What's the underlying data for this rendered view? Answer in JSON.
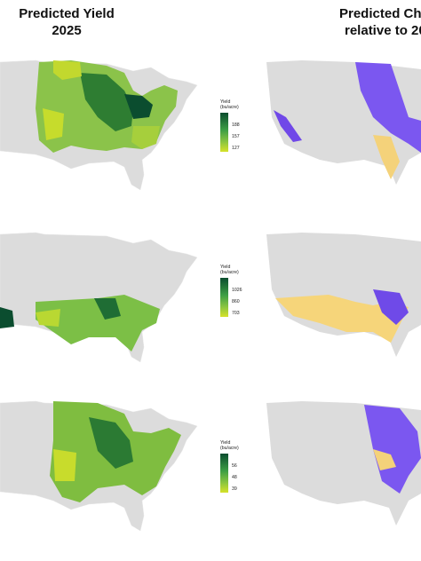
{
  "titles": {
    "left_line1": "Predicted Yield",
    "left_line2": "2025",
    "right_line1": "Predicted Cha",
    "right_line2": "relative to 20"
  },
  "legend_title_line1": "Yield",
  "legend_title_line2": "(bu/acre)",
  "rows": [
    {
      "id": "corn",
      "legend_ticks": [
        "188",
        "157",
        "127"
      ]
    },
    {
      "id": "cotton",
      "legend_ticks": [
        "1026",
        "860",
        "703"
      ]
    },
    {
      "id": "soybean",
      "legend_ticks": [
        "56",
        "48",
        "39"
      ]
    }
  ],
  "colors": {
    "county_gray": "#d9d9d9",
    "yield_high": "#0b4d2f",
    "yield_mid": "#3e9f44",
    "yield_low": "#d6e22a",
    "change_increase": "#6a3df0",
    "change_decrease": "#f5c542"
  }
}
